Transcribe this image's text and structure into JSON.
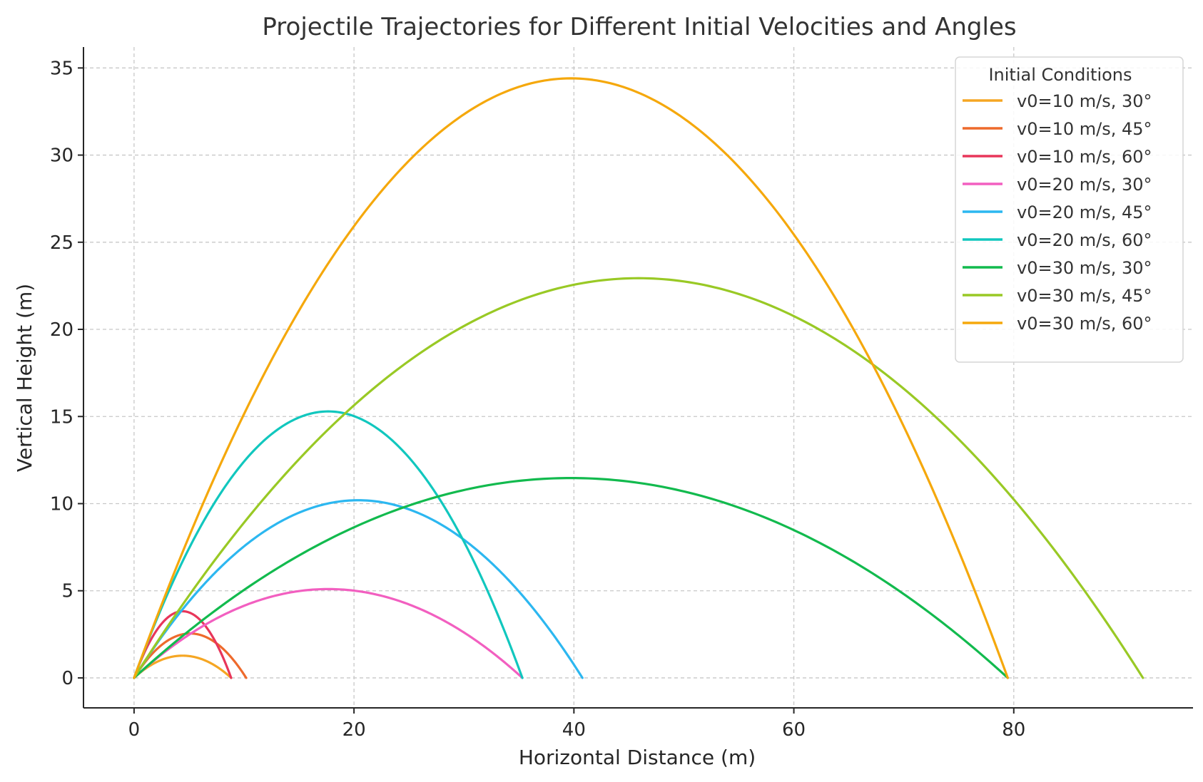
{
  "chart_data": {
    "type": "line",
    "title": "Projectile Trajectories for Different Initial Velocities and Angles",
    "xlabel": "Horizontal Distance (m)",
    "ylabel": "Vertical Height (m)",
    "xlim": [
      -4.6,
      96.3
    ],
    "ylim": [
      -1.72,
      36.2
    ],
    "xticks": [
      0,
      20,
      40,
      60,
      80
    ],
    "yticks": [
      0,
      5,
      10,
      15,
      20,
      25,
      30,
      35
    ],
    "grid": true,
    "gravity": 9.81,
    "legend": {
      "title": "Initial Conditions",
      "position": "top-right"
    },
    "series": [
      {
        "name": "v0=10 m/s, 30°",
        "v0": 10,
        "angle_deg": 30,
        "color": "#F5A623"
      },
      {
        "name": "v0=10 m/s, 45°",
        "v0": 10,
        "angle_deg": 45,
        "color": "#EE6A2C"
      },
      {
        "name": "v0=10 m/s, 60°",
        "v0": 10,
        "angle_deg": 60,
        "color": "#E8365A"
      },
      {
        "name": "v0=20 m/s, 30°",
        "v0": 20,
        "angle_deg": 30,
        "color": "#F25FC0"
      },
      {
        "name": "v0=20 m/s, 45°",
        "v0": 20,
        "angle_deg": 45,
        "color": "#2CB7F0"
      },
      {
        "name": "v0=20 m/s, 60°",
        "v0": 20,
        "angle_deg": 60,
        "color": "#11C7BE"
      },
      {
        "name": "v0=30 m/s, 30°",
        "v0": 30,
        "angle_deg": 30,
        "color": "#12BA4E"
      },
      {
        "name": "v0=30 m/s, 45°",
        "v0": 30,
        "angle_deg": 45,
        "color": "#99C925"
      },
      {
        "name": "v0=30 m/s, 60°",
        "v0": 30,
        "angle_deg": 60,
        "color": "#F5A80C"
      }
    ]
  }
}
